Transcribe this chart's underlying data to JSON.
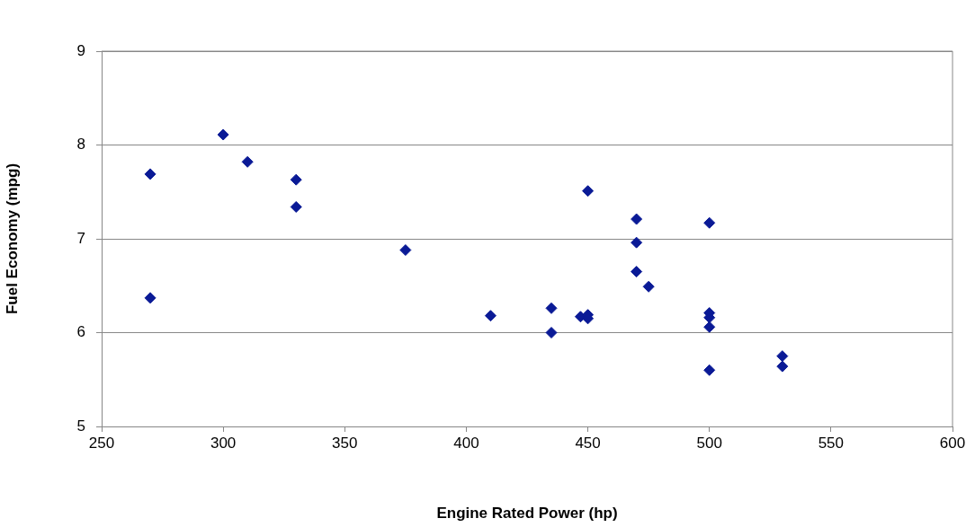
{
  "chart_data": {
    "type": "scatter",
    "xlabel": "Engine Rated Power (hp)",
    "ylabel": "Fuel Economy (mpg)",
    "x": [
      270,
      270,
      300,
      310,
      330,
      330,
      375,
      410,
      435,
      435,
      447,
      450,
      450,
      450,
      470,
      470,
      470,
      475,
      500,
      500,
      500,
      500,
      500,
      530,
      530
    ],
    "values": [
      7.69,
      6.37,
      8.11,
      7.82,
      7.63,
      7.34,
      6.88,
      6.18,
      6.26,
      6.0,
      6.17,
      6.19,
      6.15,
      7.51,
      7.21,
      6.96,
      6.65,
      6.49,
      7.17,
      6.21,
      6.16,
      6.06,
      5.6,
      5.75,
      5.64
    ],
    "color": "#0a1a96",
    "marker": "diamond",
    "xlim": [
      250,
      600
    ],
    "xticks": [
      250,
      300,
      350,
      400,
      450,
      500,
      550,
      600
    ],
    "ylim": [
      5,
      9
    ],
    "yticks": [
      5,
      6,
      7,
      8,
      9
    ],
    "grid": "y",
    "legend": false
  }
}
